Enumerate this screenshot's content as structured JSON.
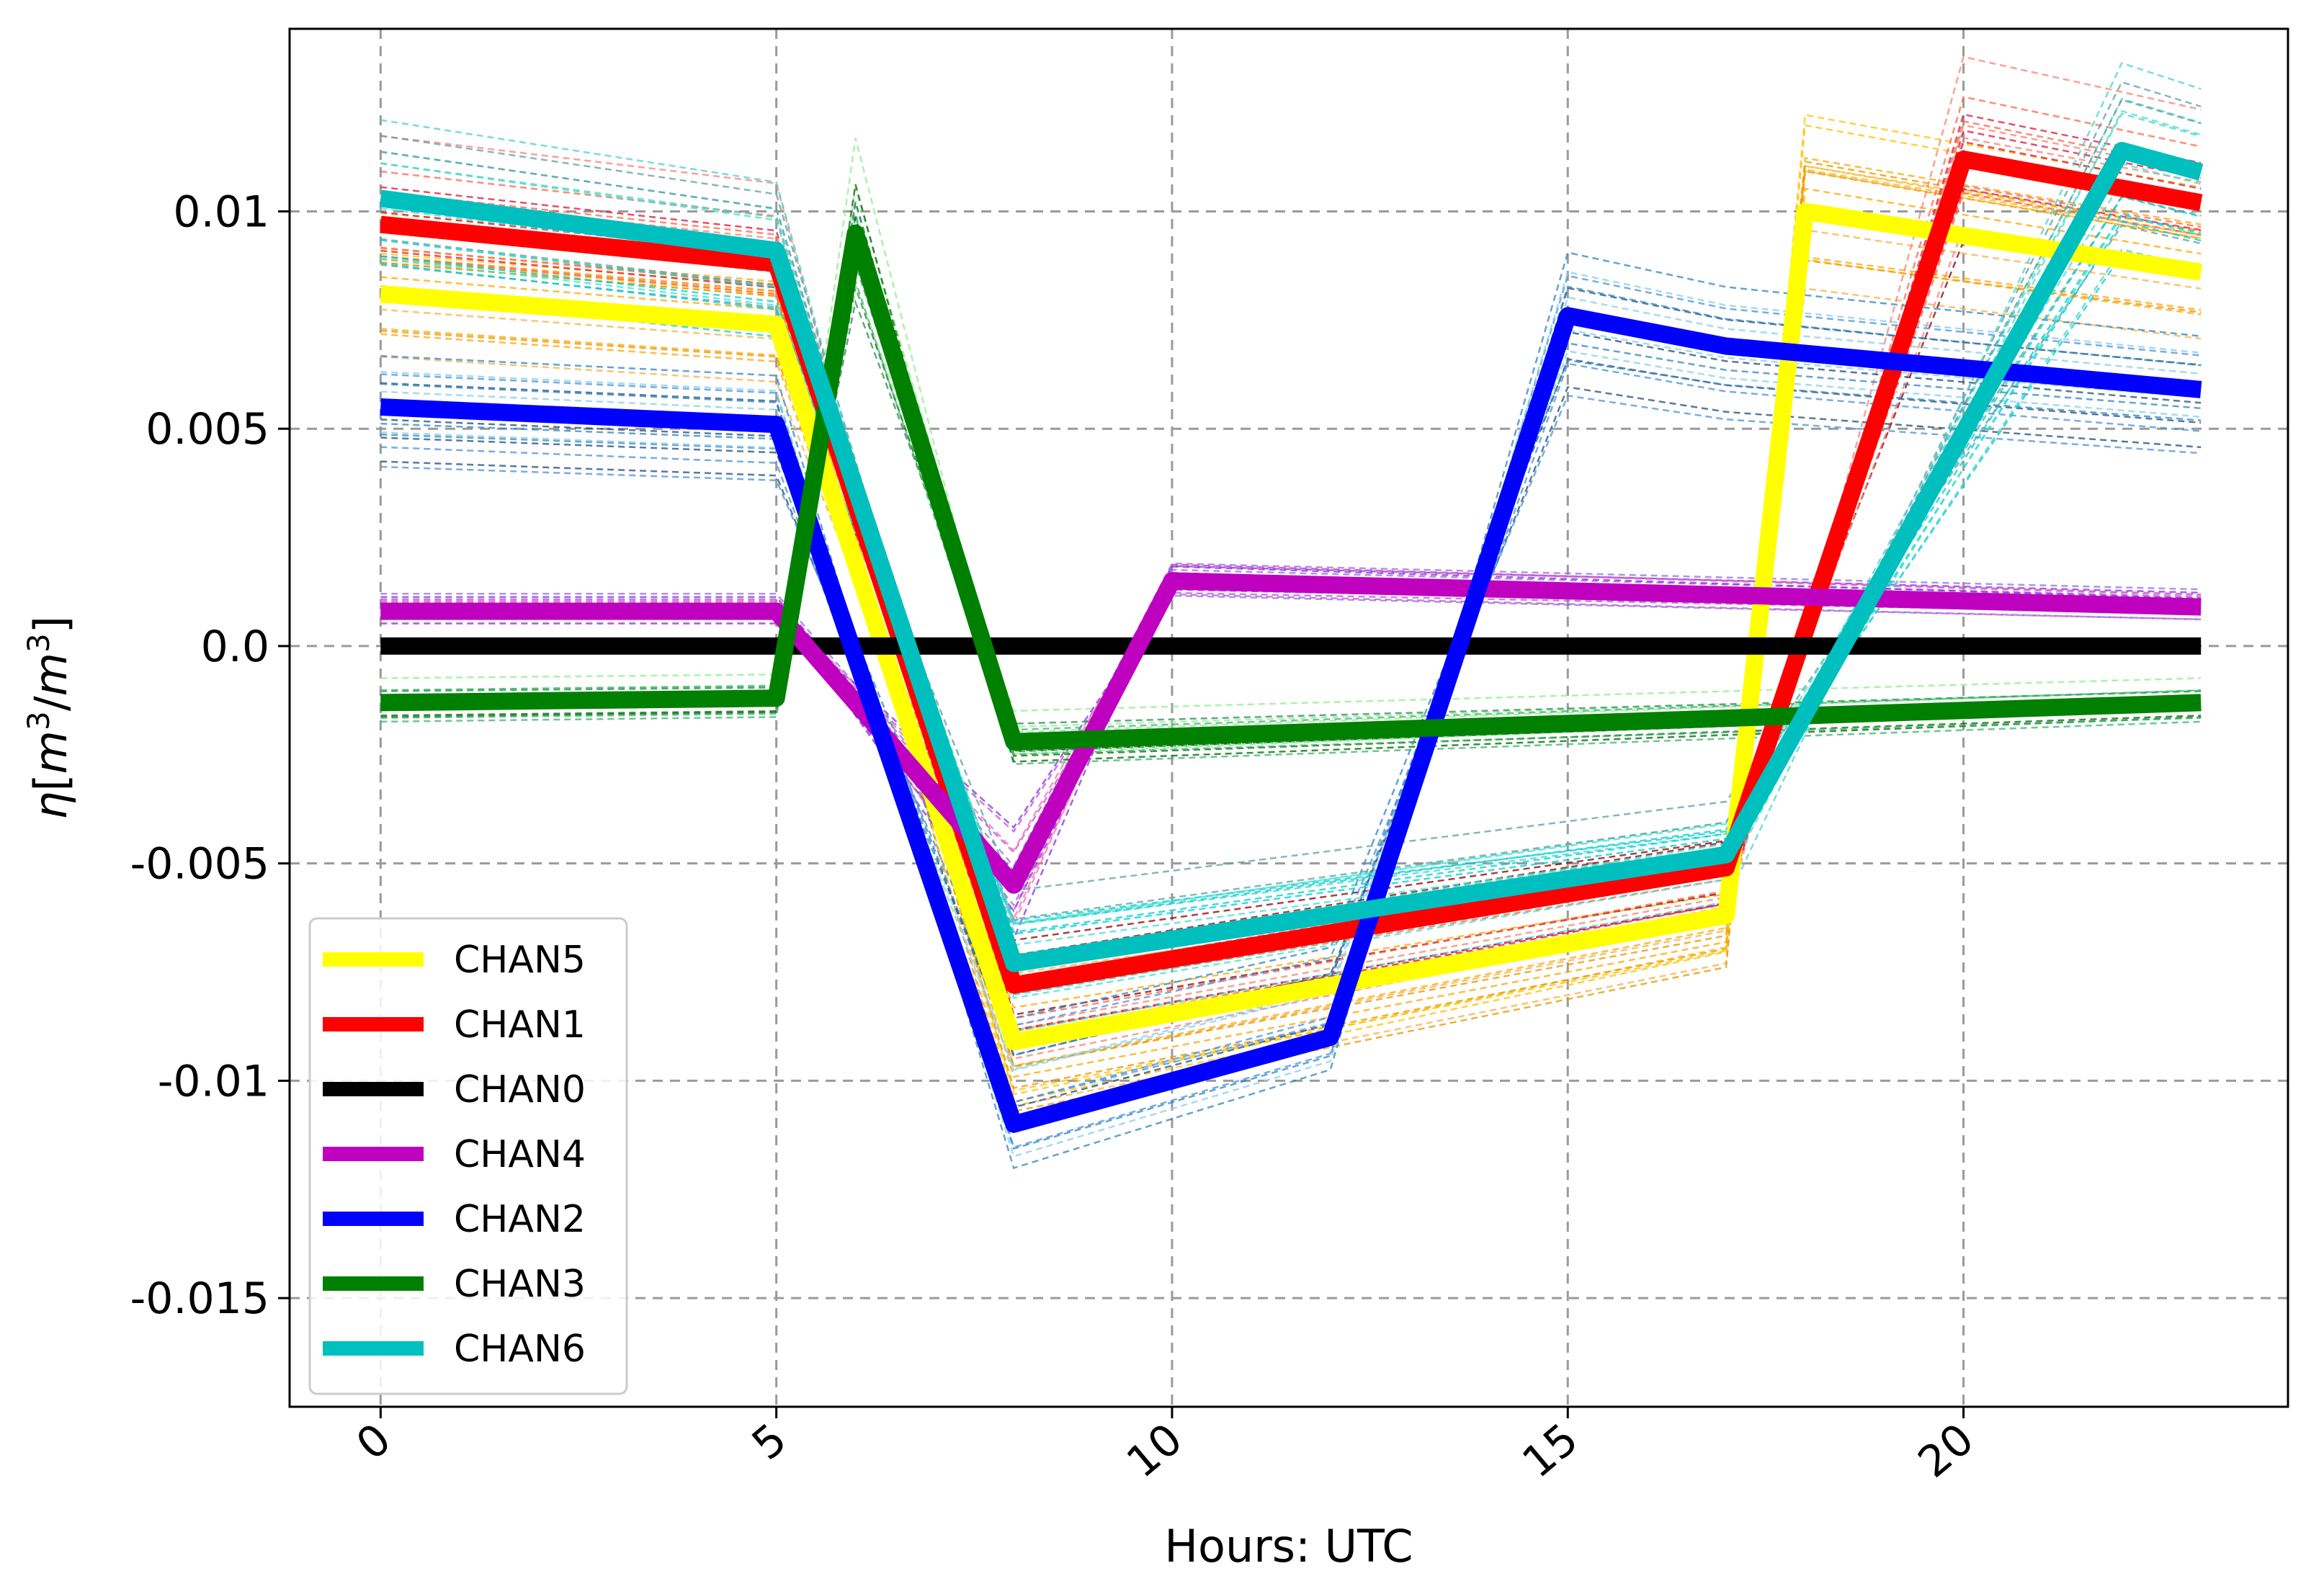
{
  "chart_data": {
    "type": "line",
    "xlabel": "Hours: UTC",
    "ylabel": "η[m³/m³]",
    "ylabel_parts": {
      "symbol": "η",
      "open": "[",
      "m1": "m",
      "exp1": "3",
      "slash": "/",
      "m2": "m",
      "exp2": "3",
      "close": "]"
    },
    "xlim": [
      -1.15,
      24.1
    ],
    "ylim": [
      -0.0175,
      0.0142
    ],
    "xticks": [
      0,
      5,
      10,
      15,
      20
    ],
    "xtick_labels": [
      "0",
      "5",
      "10",
      "15",
      "20"
    ],
    "yticks": [
      0.01,
      0.005,
      0.0,
      -0.005,
      -0.01,
      -0.015
    ],
    "ytick_labels": [
      "0.01",
      "0.005",
      "0.0",
      "-0.005",
      "-0.01",
      "-0.015"
    ],
    "grid": true,
    "legend_position": "lower-left",
    "series": [
      {
        "name": "CHAN5",
        "color": "#ffff00",
        "x": [
          0,
          5,
          8,
          17,
          18,
          23
        ],
        "values": [
          0.0081,
          0.0074,
          -0.0091,
          -0.0062,
          0.01,
          0.0086
        ]
      },
      {
        "name": "CHAN1",
        "color": "#ff0000",
        "x": [
          0,
          5,
          8,
          17,
          20,
          23
        ],
        "values": [
          0.0097,
          0.0088,
          -0.0078,
          -0.0051,
          0.0112,
          0.0102
        ]
      },
      {
        "name": "CHAN0",
        "color": "#000000",
        "x": [
          0,
          23
        ],
        "values": [
          0.0,
          0.0
        ]
      },
      {
        "name": "CHAN4",
        "color": "#bf00bf",
        "x": [
          0,
          5,
          8,
          10,
          23
        ],
        "values": [
          0.0008,
          0.0008,
          -0.0055,
          0.0015,
          0.0009
        ]
      },
      {
        "name": "CHAN2",
        "color": "#0000ff",
        "x": [
          0,
          5,
          8,
          12,
          15,
          17,
          23
        ],
        "values": [
          0.0055,
          0.0051,
          -0.011,
          -0.009,
          0.0076,
          0.0069,
          0.0059
        ]
      },
      {
        "name": "CHAN3",
        "color": "#008000",
        "x": [
          0,
          5,
          6,
          8,
          23
        ],
        "values": [
          -0.0013,
          -0.0012,
          0.0095,
          -0.0022,
          -0.0013
        ]
      },
      {
        "name": "CHAN6",
        "color": "#00bfbf",
        "x": [
          0,
          5,
          8,
          17,
          22,
          23
        ],
        "values": [
          0.0103,
          0.0091,
          -0.0073,
          -0.0048,
          0.0114,
          0.0109
        ]
      }
    ]
  }
}
